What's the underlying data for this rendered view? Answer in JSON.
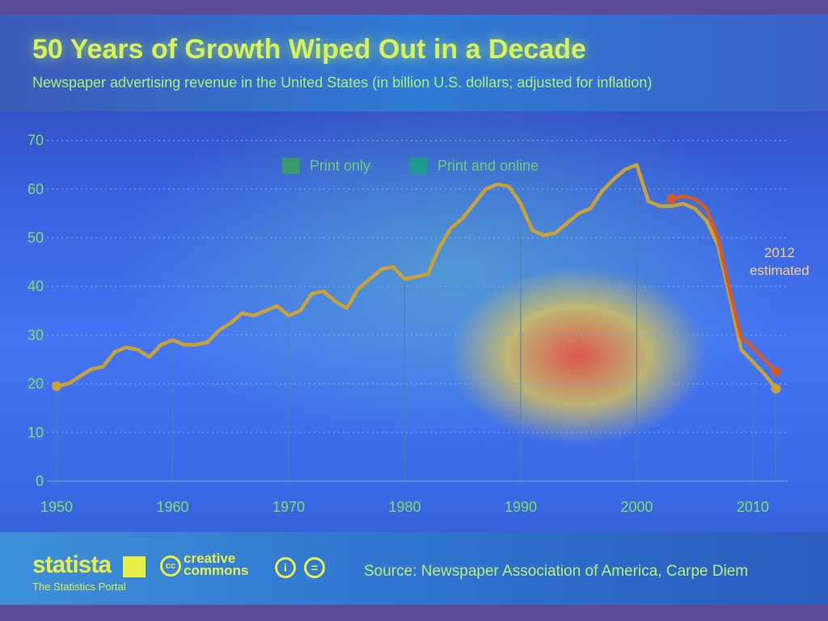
{
  "header": {
    "title": "50 Years of Growth Wiped Out in a Decade",
    "subtitle": "Newspaper advertising revenue in the United States (in billion U.S. dollars; adjusted for inflation)"
  },
  "footer": {
    "brand": "statista",
    "tagline": "The Statistics Portal",
    "cc_symbol": "cc",
    "cc_line1": "creative",
    "cc_line2": "commons",
    "attribution_symbol": "i",
    "noderivs_symbol": "=",
    "source": "Source: Newspaper Association of America, Carpe Diem"
  },
  "colors": {
    "print_only": "#c9a23a",
    "print_and_online": "#d05a2a",
    "axis_text": "#7fe06a"
  },
  "chart_data": {
    "type": "line",
    "title": "50 Years of Growth Wiped Out in a Decade",
    "subtitle": "Newspaper advertising revenue in the United States (in billion U.S. dollars; adjusted for inflation)",
    "xlim": [
      1950,
      2012
    ],
    "ylim": [
      0,
      70
    ],
    "x_ticks": [
      1950,
      1960,
      1970,
      1980,
      1990,
      2000,
      2010
    ],
    "y_ticks": [
      0,
      10,
      20,
      30,
      40,
      50,
      60,
      70
    ],
    "grid": "horizontal-dotted",
    "legend_position": "top-center",
    "series": [
      {
        "name": "Print only",
        "x": [
          1950,
          1951,
          1952,
          1953,
          1954,
          1955,
          1956,
          1957,
          1958,
          1959,
          1960,
          1961,
          1962,
          1963,
          1964,
          1965,
          1966,
          1967,
          1968,
          1969,
          1970,
          1971,
          1972,
          1973,
          1974,
          1975,
          1976,
          1977,
          1978,
          1979,
          1980,
          1981,
          1982,
          1983,
          1984,
          1985,
          1986,
          1987,
          1988,
          1989,
          1990,
          1991,
          1992,
          1993,
          1994,
          1995,
          1996,
          1997,
          1998,
          1999,
          2000,
          2001,
          2002,
          2003,
          2004,
          2005,
          2006,
          2007,
          2008,
          2009,
          2010,
          2011,
          2012
        ],
        "values": [
          19.5,
          20.0,
          21.5,
          23.0,
          23.5,
          26.5,
          27.5,
          27.0,
          25.5,
          28.0,
          29.0,
          28.0,
          28.0,
          28.5,
          31.0,
          32.5,
          34.5,
          34.0,
          35.0,
          36.0,
          34.0,
          35.0,
          38.5,
          39.0,
          37.0,
          35.5,
          39.5,
          41.5,
          43.5,
          44.0,
          41.5,
          42.0,
          42.5,
          48.0,
          52.0,
          54.0,
          57.0,
          60.0,
          61.0,
          60.5,
          57.0,
          51.5,
          50.5,
          51.0,
          53.0,
          55.0,
          56.0,
          59.5,
          62.0,
          64.0,
          65.0,
          57.5,
          56.5,
          56.5,
          57.0,
          56.0,
          53.5,
          48.5,
          38.0,
          27.0,
          24.5,
          22.0,
          19.0
        ]
      },
      {
        "name": "Print and online",
        "x": [
          2003,
          2004,
          2005,
          2006,
          2007,
          2008,
          2009,
          2010,
          2011,
          2012
        ],
        "values": [
          58.0,
          58.5,
          58.0,
          56.0,
          50.0,
          39.5,
          29.5,
          27.5,
          25.0,
          22.5
        ]
      }
    ],
    "vertical_guides": [
      1950,
      1960,
      1970,
      1980,
      1990,
      2000,
      2010,
      2012
    ],
    "annotation": {
      "line1": "2012",
      "line2": "estimated",
      "x": 2012
    }
  }
}
